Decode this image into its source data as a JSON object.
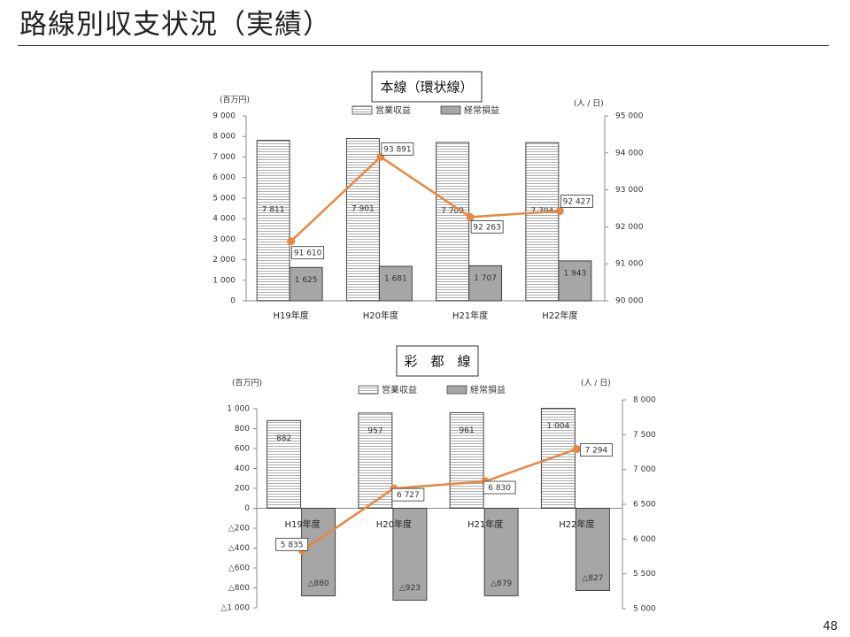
{
  "page": {
    "title": "路線別収支状況（実績）",
    "page_number": "48"
  },
  "colors": {
    "revenue_fill": "#ffffff",
    "revenue_stripe": "#9a9a9a",
    "profit_fill": "#a6a6a6",
    "line": "#e8873f",
    "axis": "#888888",
    "grid": "#d0d0d0"
  },
  "chart_data": [
    {
      "type": "bar",
      "combo_line_on_secondary_axis": true,
      "title": "本線（環状線）",
      "ylabel": "(百万円)",
      "y2label": "(人 / 日)",
      "categories": [
        "H19年度",
        "H20年度",
        "H21年度",
        "H22年度"
      ],
      "ylim": [
        0,
        9000
      ],
      "y2lim": [
        90000,
        95000
      ],
      "y_ticks": [
        0,
        1000,
        2000,
        3000,
        4000,
        5000,
        6000,
        7000,
        8000,
        9000
      ],
      "y_tick_labels": [
        "0",
        "1 000",
        "2 000",
        "3 000",
        "4 000",
        "5 000",
        "6 000",
        "7 000",
        "8 000",
        "9 000"
      ],
      "y2_ticks": [
        90000,
        91000,
        92000,
        93000,
        94000,
        95000
      ],
      "y2_tick_labels": [
        "90 000",
        "91 000",
        "92 000",
        "93 000",
        "94 000",
        "95 000"
      ],
      "legend_position": "top-center",
      "grid": false,
      "series": [
        {
          "name": "営業収益",
          "kind": "bar",
          "values": [
            7811,
            7901,
            7709,
            7704
          ],
          "labels": [
            "7 811",
            "7 901",
            "7 709",
            "7 704"
          ]
        },
        {
          "name": "経常損益",
          "kind": "bar",
          "values": [
            1625,
            1681,
            1707,
            1943
          ],
          "labels": [
            "1 625",
            "1 681",
            "1 707",
            "1 943"
          ]
        },
        {
          "kind": "line",
          "axis": "secondary",
          "values": [
            91610,
            93891,
            92263,
            92427
          ],
          "labels": [
            "91 610",
            "93 891",
            "92 263",
            "92 427"
          ]
        }
      ]
    },
    {
      "type": "bar",
      "combo_line_on_secondary_axis": true,
      "title": "彩　都　線",
      "ylabel": "(百万円)",
      "y2label": "(人 / 日)",
      "categories": [
        "H19年度",
        "H20年度",
        "H21年度",
        "H22年度"
      ],
      "ylim": [
        -1000,
        1000
      ],
      "y2lim": [
        5000,
        8000
      ],
      "y_ticks": [
        -1000,
        -800,
        -600,
        -400,
        -200,
        0,
        200,
        400,
        600,
        800,
        1000
      ],
      "y_tick_labels": [
        "△1 000",
        "△800",
        "△600",
        "△400",
        "△200",
        "0",
        "200",
        "400",
        "600",
        "800",
        "1 000"
      ],
      "y2_ticks": [
        5000,
        5500,
        6000,
        6500,
        7000,
        7500,
        8000
      ],
      "y2_tick_labels": [
        "5 000",
        "5 500",
        "6 000",
        "6 500",
        "7 000",
        "7 500",
        "8 000"
      ],
      "legend_position": "top-center",
      "grid": false,
      "series": [
        {
          "name": "営業収益",
          "kind": "bar",
          "values": [
            882,
            957,
            961,
            1004
          ],
          "labels": [
            "882",
            "957",
            "961",
            "1 004"
          ]
        },
        {
          "name": "経常損益",
          "kind": "bar",
          "values": [
            -880,
            -923,
            -879,
            -827
          ],
          "labels": [
            "△880",
            "△923",
            "△879",
            "△827"
          ]
        },
        {
          "kind": "line",
          "axis": "secondary",
          "values": [
            5835,
            6727,
            6830,
            7294
          ],
          "labels": [
            "5 835",
            "6 727",
            "6 830",
            "7 294"
          ]
        }
      ]
    }
  ]
}
